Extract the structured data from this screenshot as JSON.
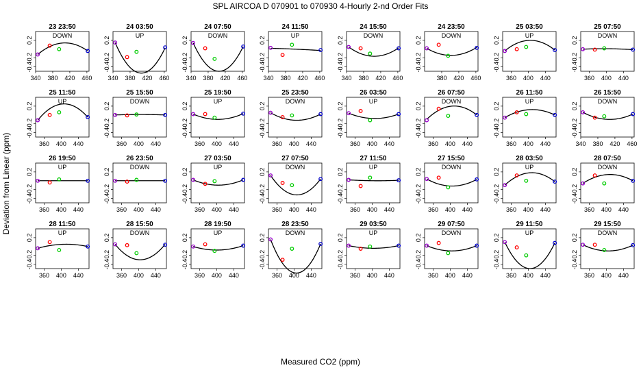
{
  "title": "SPL   AIRCOA D   070901 to 070930   4-Hourly 2-nd Order Fits",
  "chart_data": {
    "type": "scatter",
    "title": "SPL   AIRCOA D   070901 to 070930   4-Hourly 2-nd Order Fits",
    "xlabel": "Measured CO2 (ppm)",
    "ylabel": "Deviation from Linear (ppm)",
    "ylim": [
      -0.5,
      0.4
    ],
    "yticks": [
      "-0.4",
      "-0.2",
      "0.2"
    ],
    "colors": {
      "fit": "#000000",
      "low": "#9900cc",
      "mid1": "#ff0000",
      "mid2": "#00cc00",
      "high": "#0000cc"
    },
    "panels": [
      {
        "title": "23 23:50",
        "dir": "DOWN",
        "xlim": [
          340,
          465
        ],
        "xticks": [
          "340",
          "380",
          "420",
          "460"
        ],
        "x": [
          345,
          373,
          395,
          462
        ],
        "y": [
          -0.12,
          0.08,
          0.0,
          -0.04
        ],
        "fit": [
          -0.12,
          0.14,
          -0.04
        ]
      },
      {
        "title": "24 03:50",
        "dir": "UP",
        "xlim": [
          340,
          465
        ],
        "xticks": [
          "340",
          "380",
          "420",
          "460"
        ],
        "x": [
          345,
          373,
          395,
          462
        ],
        "y": [
          0.15,
          -0.18,
          -0.06,
          0.04
        ],
        "fit": [
          0.15,
          -0.54,
          0.03
        ]
      },
      {
        "title": "24 07:50",
        "dir": "DOWN",
        "xlim": [
          340,
          465
        ],
        "xticks": [
          "340",
          "380",
          "420",
          "460"
        ],
        "x": [
          345,
          373,
          395,
          462
        ],
        "y": [
          0.14,
          0.02,
          -0.22,
          0.06
        ],
        "fit": [
          0.14,
          -0.5,
          0.06
        ]
      },
      {
        "title": "24 11:50",
        "dir": "UP",
        "xlim": [
          340,
          465
        ],
        "xticks": [
          "340",
          "380",
          "420",
          "460"
        ],
        "x": [
          345,
          373,
          395,
          462
        ],
        "y": [
          0.03,
          -0.13,
          0.1,
          -0.02
        ],
        "fit": [
          0.02,
          0.0,
          -0.03
        ]
      },
      {
        "title": "24 15:50",
        "dir": "DOWN",
        "xlim": [
          340,
          465
        ],
        "xticks": [
          "340",
          "380",
          "420",
          "460"
        ],
        "x": [
          345,
          373,
          395,
          462
        ],
        "y": [
          0.05,
          0.02,
          -0.1,
          0.02
        ],
        "fit": [
          0.05,
          -0.16,
          0.03
        ]
      },
      {
        "title": "24 23:50",
        "dir": "DOWN",
        "xlim": [
          340,
          465
        ],
        "xticks": [
          "380",
          "420",
          "460"
        ],
        "x": [
          345,
          373,
          395,
          462
        ],
        "y": [
          0.02,
          0.1,
          -0.15,
          0.03
        ],
        "fit": [
          0.02,
          -0.14,
          0.04
        ]
      },
      {
        "title": "25 03:50",
        "dir": "UP",
        "xlim": [
          340,
          465
        ],
        "xticks": [
          "360",
          "400",
          "440"
        ],
        "x": [
          345,
          373,
          395,
          462
        ],
        "y": [
          -0.04,
          0.0,
          0.05,
          -0.02
        ],
        "fit": [
          -0.04,
          0.2,
          -0.02
        ]
      },
      {
        "title": "25 07:50",
        "dir": "DOWN",
        "xlim": [
          340,
          465
        ],
        "xticks": [
          "360",
          "400",
          "440"
        ],
        "x": [
          345,
          373,
          395,
          462
        ],
        "y": [
          0.0,
          -0.01,
          0.02,
          -0.01
        ],
        "fit": [
          0.0,
          0.01,
          -0.01
        ]
      },
      {
        "title": "25 11:50",
        "dir": "UP",
        "xlim": [
          340,
          465
        ],
        "xticks": [
          "360",
          "400",
          "440"
        ],
        "x": [
          345,
          373,
          395,
          462
        ],
        "y": [
          -0.12,
          0.0,
          0.06,
          -0.05
        ],
        "fit": [
          -0.12,
          0.25,
          -0.05
        ]
      },
      {
        "title": "25 15:50",
        "dir": "DOWN",
        "xlim": [
          340,
          465
        ],
        "xticks": [
          "360",
          "400",
          "440"
        ],
        "x": [
          345,
          373,
          395,
          462
        ],
        "y": [
          0.0,
          -0.01,
          0.01,
          0.0
        ],
        "fit": [
          0.0,
          0.01,
          0.0
        ]
      },
      {
        "title": "25 19:50",
        "dir": "UP",
        "xlim": [
          340,
          465
        ],
        "xticks": [
          "360",
          "400",
          "440"
        ],
        "x": [
          345,
          373,
          395,
          462
        ],
        "y": [
          0.02,
          0.02,
          -0.06,
          0.03
        ],
        "fit": [
          0.02,
          -0.1,
          0.03
        ]
      },
      {
        "title": "25 23:50",
        "dir": "DOWN",
        "xlim": [
          340,
          465
        ],
        "xticks": [
          "360",
          "400",
          "440"
        ],
        "x": [
          345,
          373,
          395,
          462
        ],
        "y": [
          0.05,
          -0.05,
          -0.01,
          0.02
        ],
        "fit": [
          0.05,
          -0.12,
          0.02
        ]
      },
      {
        "title": "26 03:50",
        "dir": "UP",
        "xlim": [
          340,
          465
        ],
        "xticks": [
          "360",
          "400",
          "440"
        ],
        "x": [
          345,
          373,
          395,
          462
        ],
        "y": [
          0.04,
          0.09,
          -0.12,
          0.02
        ],
        "fit": [
          0.04,
          -0.08,
          0.02
        ]
      },
      {
        "title": "26 07:50",
        "dir": "DOWN",
        "xlim": [
          340,
          465
        ],
        "xticks": [
          "360",
          "400",
          "440"
        ],
        "x": [
          345,
          373,
          395,
          462
        ],
        "y": [
          -0.12,
          0.14,
          -0.02,
          0.0
        ],
        "fit": [
          -0.1,
          0.2,
          0.0
        ]
      },
      {
        "title": "26 11:50",
        "dir": "UP",
        "xlim": [
          340,
          465
        ],
        "xticks": [
          "360",
          "400",
          "440"
        ],
        "x": [
          345,
          373,
          395,
          462
        ],
        "y": [
          -0.06,
          0.06,
          0.02,
          0.0
        ],
        "fit": [
          -0.06,
          0.12,
          0.0
        ]
      },
      {
        "title": "26 15:50",
        "dir": "DOWN",
        "xlim": [
          340,
          465
        ],
        "xticks": [
          "340",
          "380",
          "420",
          "460"
        ],
        "x": [
          345,
          373,
          395,
          462
        ],
        "y": [
          0.06,
          -0.06,
          -0.03,
          0.02
        ],
        "fit": [
          0.06,
          -0.1,
          0.02
        ]
      },
      {
        "title": "26 19:50",
        "dir": "UP",
        "xlim": [
          340,
          465
        ],
        "xticks": [
          "360",
          "400",
          "440"
        ],
        "x": [
          345,
          373,
          395,
          462
        ],
        "y": [
          0.0,
          -0.04,
          0.03,
          0.0
        ],
        "fit": [
          0.0,
          0.0,
          0.0
        ]
      },
      {
        "title": "26 23:50",
        "dir": "DOWN",
        "xlim": [
          340,
          465
        ],
        "xticks": [
          "360",
          "400",
          "440"
        ],
        "x": [
          345,
          373,
          395,
          462
        ],
        "y": [
          0.0,
          -0.02,
          0.02,
          0.0
        ],
        "fit": [
          0.0,
          0.0,
          0.0
        ]
      },
      {
        "title": "27 03:50",
        "dir": "UP",
        "xlim": [
          340,
          465
        ],
        "xticks": [
          "360",
          "400",
          "440"
        ],
        "x": [
          345,
          373,
          395,
          462
        ],
        "y": [
          0.02,
          -0.07,
          -0.01,
          0.02
        ],
        "fit": [
          0.02,
          -0.1,
          0.02
        ]
      },
      {
        "title": "27 07:50",
        "dir": "DOWN",
        "xlim": [
          340,
          465
        ],
        "xticks": [
          "360",
          "400",
          "440"
        ],
        "x": [
          345,
          373,
          395,
          462
        ],
        "y": [
          0.12,
          -0.05,
          -0.1,
          0.04
        ],
        "fit": [
          0.12,
          -0.32,
          0.04
        ]
      },
      {
        "title": "27 11:50",
        "dir": "UP",
        "xlim": [
          340,
          465
        ],
        "xticks": [
          "360",
          "400",
          "440"
        ],
        "x": [
          345,
          373,
          395,
          462
        ],
        "y": [
          0.02,
          -0.12,
          0.07,
          0.01
        ],
        "fit": [
          0.02,
          0.0,
          0.01
        ]
      },
      {
        "title": "27 15:50",
        "dir": "DOWN",
        "xlim": [
          340,
          465
        ],
        "xticks": [
          "360",
          "400",
          "440"
        ],
        "x": [
          345,
          373,
          395,
          462
        ],
        "y": [
          0.04,
          0.07,
          -0.15,
          0.03
        ],
        "fit": [
          0.04,
          -0.12,
          0.03
        ]
      },
      {
        "title": "28 03:50",
        "dir": "UP",
        "xlim": [
          340,
          465
        ],
        "xticks": [
          "360",
          "400",
          "440"
        ],
        "x": [
          345,
          373,
          395,
          462
        ],
        "y": [
          -0.1,
          0.12,
          0.0,
          -0.02
        ],
        "fit": [
          -0.1,
          0.18,
          -0.02
        ]
      },
      {
        "title": "28 07:50",
        "dir": "DOWN",
        "xlim": [
          340,
          465
        ],
        "xticks": [
          "360",
          "400",
          "440"
        ],
        "x": [
          345,
          373,
          395,
          462
        ],
        "y": [
          -0.06,
          0.12,
          -0.06,
          0.0
        ],
        "fit": [
          -0.06,
          0.14,
          0.0
        ]
      },
      {
        "title": "28 11:50",
        "dir": "UP",
        "xlim": [
          340,
          465
        ],
        "xticks": [
          "360",
          "400",
          "440"
        ],
        "x": [
          345,
          373,
          395,
          462
        ],
        "y": [
          -0.04,
          0.1,
          -0.08,
          0.0
        ],
        "fit": [
          -0.04,
          0.05,
          0.0
        ]
      },
      {
        "title": "28 15:50",
        "dir": "DOWN",
        "xlim": [
          340,
          465
        ],
        "xticks": [
          "360",
          "400",
          "440"
        ],
        "x": [
          345,
          373,
          395,
          462
        ],
        "y": [
          0.05,
          0.03,
          -0.15,
          0.04
        ],
        "fit": [
          0.05,
          -0.3,
          0.05
        ]
      },
      {
        "title": "28 19:50",
        "dir": "UP",
        "xlim": [
          340,
          465
        ],
        "xticks": [
          "360",
          "400",
          "440"
        ],
        "x": [
          345,
          373,
          395,
          462
        ],
        "y": [
          0.0,
          0.05,
          -0.1,
          0.02
        ],
        "fit": [
          0.0,
          -0.08,
          0.02
        ]
      },
      {
        "title": "28 23:50",
        "dir": "DOWN",
        "xlim": [
          340,
          465
        ],
        "xticks": [
          "360",
          "400",
          "440"
        ],
        "x": [
          345,
          373,
          395,
          462
        ],
        "y": [
          0.16,
          -0.3,
          -0.05,
          0.06
        ],
        "fit": [
          0.16,
          -0.6,
          0.06
        ]
      },
      {
        "title": "29 03:50",
        "dir": "UP",
        "xlim": [
          340,
          465
        ],
        "xticks": [
          "360",
          "400",
          "440"
        ],
        "x": [
          345,
          373,
          395,
          462
        ],
        "y": [
          0.02,
          -0.05,
          0.0,
          0.02
        ],
        "fit": [
          0.02,
          -0.04,
          0.02
        ]
      },
      {
        "title": "29 07:50",
        "dir": "DOWN",
        "xlim": [
          340,
          465
        ],
        "xticks": [
          "360",
          "400",
          "440"
        ],
        "x": [
          345,
          373,
          395,
          462
        ],
        "y": [
          0.02,
          0.08,
          -0.15,
          0.02
        ],
        "fit": [
          0.02,
          -0.1,
          0.02
        ]
      },
      {
        "title": "29 11:50",
        "dir": "UP",
        "xlim": [
          340,
          465
        ],
        "xticks": [
          "360",
          "400",
          "440"
        ],
        "x": [
          345,
          373,
          395,
          462
        ],
        "y": [
          0.1,
          -0.02,
          -0.2,
          0.08
        ],
        "fit": [
          0.1,
          -0.5,
          0.08
        ]
      },
      {
        "title": "29 15:50",
        "dir": "DOWN",
        "xlim": [
          340,
          465
        ],
        "xticks": [
          "360",
          "400",
          "440"
        ],
        "x": [
          345,
          373,
          395,
          462
        ],
        "y": [
          0.04,
          0.04,
          -0.08,
          0.03
        ],
        "fit": [
          0.04,
          -0.1,
          0.03
        ]
      }
    ]
  }
}
